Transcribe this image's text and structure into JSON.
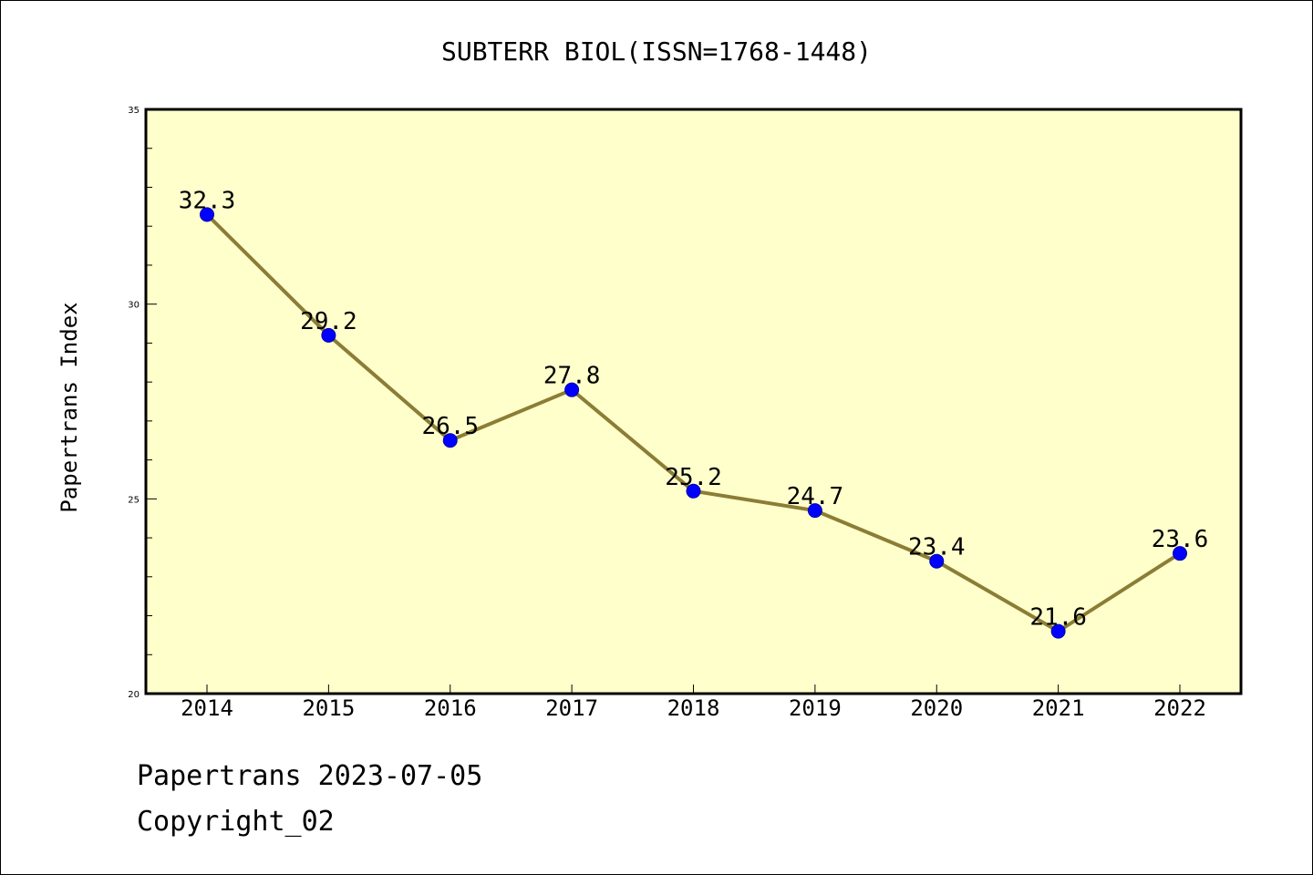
{
  "colors": {
    "plot_background": "#ffffcc",
    "line": "#8b7d35",
    "marker": "#0000ff",
    "marker_edge": "#0000aa"
  },
  "chart_data": {
    "type": "line",
    "title": "SUBTERR BIOL(ISSN=1768-1448)",
    "xlabel": "",
    "ylabel": "Papertrans Index",
    "categories": [
      "2014",
      "2015",
      "2016",
      "2017",
      "2018",
      "2019",
      "2020",
      "2021",
      "2022"
    ],
    "series": [
      {
        "values": [
          32.3,
          29.2,
          26.5,
          27.8,
          25.2,
          24.7,
          23.4,
          21.6,
          23.6
        ],
        "labels": [
          "32.3",
          "29.2",
          "26.5",
          "27.8",
          "25.2",
          "24.7",
          "23.4",
          "21.6",
          "23.6"
        ]
      }
    ],
    "ylim": [
      20,
      35
    ],
    "yticks": [
      20,
      25,
      30,
      35
    ],
    "ytick_labels": [
      "20",
      "25",
      "30",
      "35"
    ],
    "y_minor_step": 1,
    "grid": false,
    "legend": "none"
  },
  "footer": {
    "date_line": "Papertrans 2023-07-05",
    "copyright_line": "Copyright_02"
  }
}
